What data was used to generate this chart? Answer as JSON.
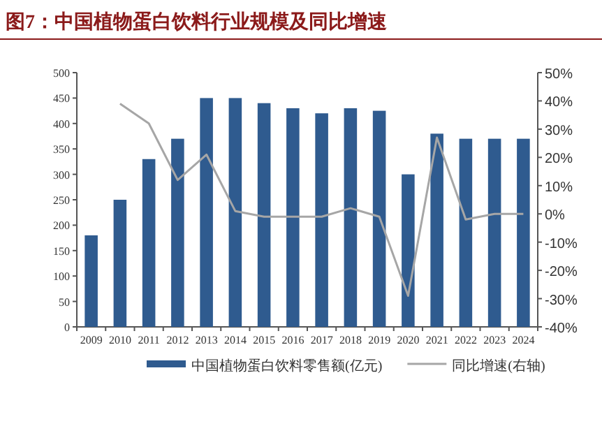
{
  "chart_data": {
    "type": "bar",
    "title": "图7：中国植物蛋白饮料行业规模及同比增速",
    "categories": [
      "2009",
      "2010",
      "2011",
      "2012",
      "2013",
      "2014",
      "2015",
      "2016",
      "2017",
      "2018",
      "2019",
      "2020",
      "2021",
      "2022",
      "2023",
      "2024"
    ],
    "series": [
      {
        "name": "中国植物蛋白饮料零售额(亿元)",
        "color": "#2f5b8f",
        "values": [
          180,
          250,
          330,
          370,
          450,
          450,
          440,
          430,
          420,
          430,
          425,
          300,
          380,
          370,
          370,
          370
        ]
      },
      {
        "name": "同比增速(右轴)",
        "type": "line",
        "axis": "y2",
        "color": "#a6a6a6",
        "values": [
          null,
          39,
          32,
          12,
          21,
          1,
          -1,
          -1,
          -1,
          2,
          -1,
          -29,
          27,
          -2,
          0,
          0
        ]
      }
    ],
    "ylim": [
      0,
      500
    ],
    "yticks": [
      0,
      50,
      100,
      150,
      200,
      250,
      300,
      350,
      400,
      450,
      500
    ],
    "y2lim": [
      -40,
      50
    ],
    "y2ticks": [
      {
        "value": -40,
        "label": "-40%"
      },
      {
        "value": -30,
        "label": "-30%"
      },
      {
        "value": -20,
        "label": "-20%"
      },
      {
        "value": -10,
        "label": "-10%"
      },
      {
        "value": 0,
        "label": "0%"
      },
      {
        "value": 10,
        "label": "10%"
      },
      {
        "value": 20,
        "label": "20%"
      },
      {
        "value": 30,
        "label": "30%"
      },
      {
        "value": 40,
        "label": "40%"
      },
      {
        "value": 50,
        "label": "50%"
      }
    ],
    "grid": false,
    "legend": "bottom"
  }
}
